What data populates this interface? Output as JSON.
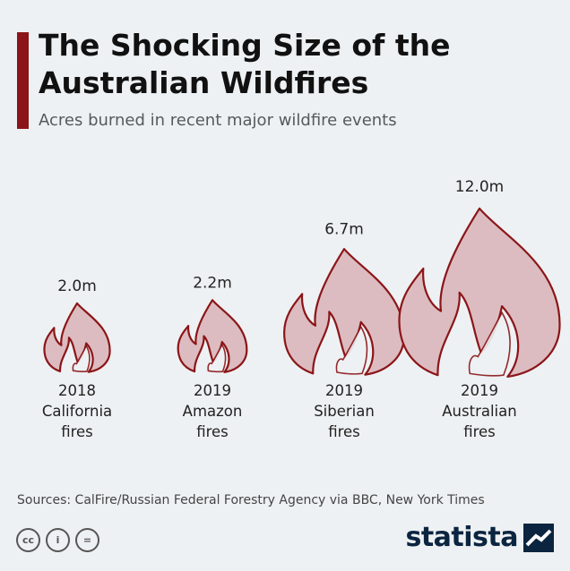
{
  "header": {
    "title": "The Shocking Size of the Australian Wildfires",
    "subtitle": "Acres burned in recent major wildfire events"
  },
  "chart_data": {
    "type": "bar",
    "categories": [
      [
        "2018",
        "California",
        "fires"
      ],
      [
        "2019",
        "Amazon",
        "fires"
      ],
      [
        "2019",
        "Siberian",
        "fires"
      ],
      [
        "2019",
        "Australian",
        "fires"
      ]
    ],
    "values": [
      2.0,
      2.2,
      6.7,
      12.0
    ],
    "value_labels": [
      "2.0m",
      "2.2m",
      "6.7m",
      "12.0m"
    ],
    "marker": "flame",
    "colors": {
      "fill": "#dcbcc0",
      "outline": "#8b1518"
    }
  },
  "footer": {
    "source": "Sources: CalFire/Russian Federal Forestry Agency via BBC, New York Times",
    "brand": "statista",
    "license_icons": [
      "cc-icon",
      "attribution-icon",
      "no-derivatives-icon"
    ],
    "license_glyphs": [
      "cc",
      "i",
      "="
    ]
  },
  "colors": {
    "accent": "#8b1518",
    "background": "#eef1f3",
    "brand": "#0b2540"
  }
}
